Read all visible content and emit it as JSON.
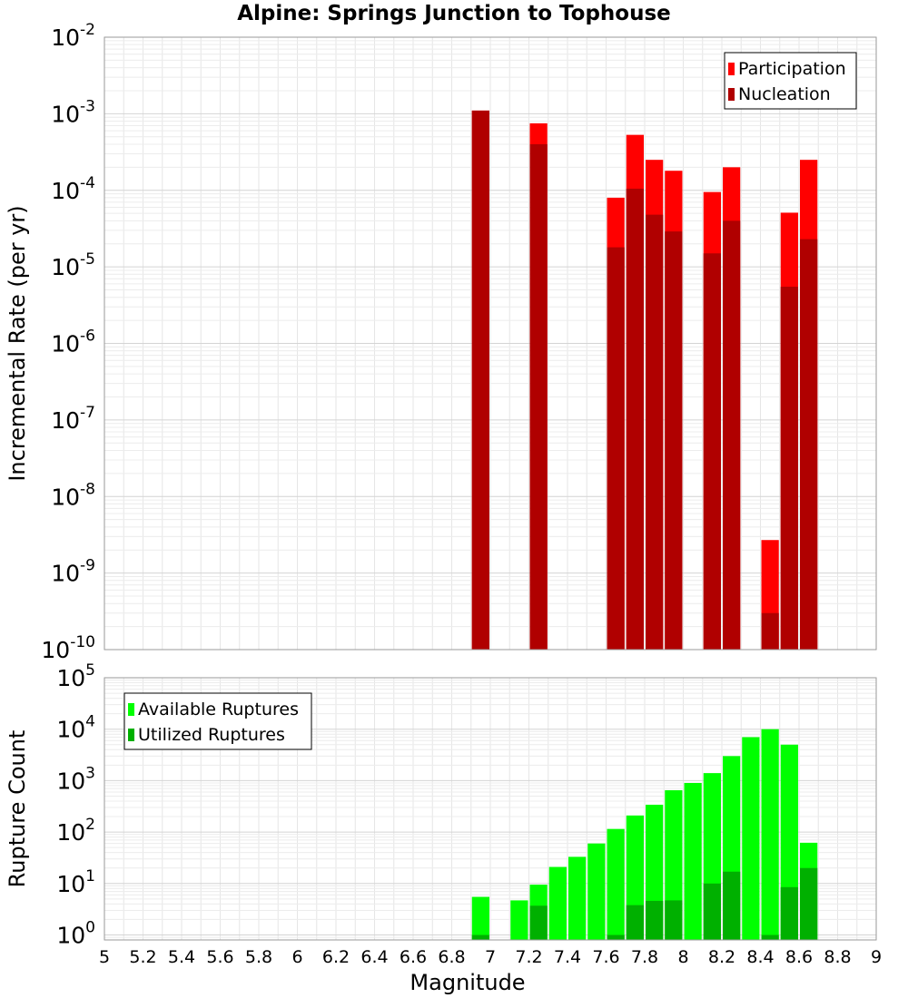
{
  "title": "Alpine: Springs Junction to Tophouse",
  "chart_data": [
    {
      "type": "bar",
      "yscale": "log",
      "xlim": [
        5,
        9
      ],
      "ylim": [
        1e-10,
        0.01
      ],
      "ylabel": "Incremental Rate (per yr)",
      "xlabel": "",
      "grid": true,
      "legend_placement": "top-right",
      "bin_width": 0.1,
      "y_tick_exponents": [
        -10,
        -9,
        -8,
        -7,
        -6,
        -5,
        -4,
        -3,
        -2
      ],
      "series": [
        {
          "name": "Participation",
          "color": "#ff0000",
          "points": [
            [
              6.95,
              0.0011
            ],
            [
              7.25,
              0.00075
            ],
            [
              7.65,
              8e-05
            ],
            [
              7.75,
              0.00053
            ],
            [
              7.85,
              0.00025
            ],
            [
              7.95,
              0.00018
            ],
            [
              8.15,
              9.5e-05
            ],
            [
              8.25,
              0.0002
            ],
            [
              8.45,
              2.7e-09
            ],
            [
              8.55,
              5.1e-05
            ],
            [
              8.65,
              0.00025
            ]
          ]
        },
        {
          "name": "Nucleation",
          "color": "#b00000",
          "points": [
            [
              6.95,
              0.0011
            ],
            [
              7.25,
              0.0004
            ],
            [
              7.65,
              1.8e-05
            ],
            [
              7.75,
              0.000105
            ],
            [
              7.85,
              4.8e-05
            ],
            [
              7.95,
              2.9e-05
            ],
            [
              8.15,
              1.5e-05
            ],
            [
              8.25,
              4e-05
            ],
            [
              8.45,
              3e-10
            ],
            [
              8.55,
              5.5e-06
            ],
            [
              8.65,
              2.3e-05
            ]
          ]
        }
      ]
    },
    {
      "type": "bar",
      "yscale": "log",
      "xlim": [
        5,
        9
      ],
      "ylim": [
        0.8,
        100000
      ],
      "xlabel": "Magnitude",
      "ylabel": "Rupture Count",
      "grid": true,
      "legend_placement": "top-left",
      "bin_width": 0.1,
      "x_ticks": [
        "5",
        "5.2",
        "5.4",
        "5.6",
        "5.8",
        "6",
        "6.2",
        "6.4",
        "6.6",
        "6.8",
        "7",
        "7.2",
        "7.4",
        "7.6",
        "7.8",
        "8",
        "8.2",
        "8.4",
        "8.6",
        "8.8",
        "9"
      ],
      "y_tick_exponents": [
        0,
        1,
        2,
        3,
        4,
        5
      ],
      "series": [
        {
          "name": "Available Ruptures",
          "color": "#00ff00",
          "points": [
            [
              6.95,
              5.5
            ],
            [
              7.15,
              4.7
            ],
            [
              7.25,
              9.5
            ],
            [
              7.35,
              21
            ],
            [
              7.45,
              33
            ],
            [
              7.55,
              60
            ],
            [
              7.65,
              115
            ],
            [
              7.75,
              210
            ],
            [
              7.85,
              340
            ],
            [
              7.95,
              650
            ],
            [
              8.05,
              900
            ],
            [
              8.15,
              1400
            ],
            [
              8.25,
              3000
            ],
            [
              8.35,
              7000
            ],
            [
              8.45,
              10000
            ],
            [
              8.55,
              5000
            ],
            [
              8.65,
              62
            ]
          ]
        },
        {
          "name": "Utilized Ruptures",
          "color": "#00b000",
          "points": [
            [
              6.95,
              1
            ],
            [
              7.25,
              3.7
            ],
            [
              7.65,
              1
            ],
            [
              7.75,
              3.8
            ],
            [
              7.85,
              4.6
            ],
            [
              7.95,
              4.7
            ],
            [
              8.15,
              10
            ],
            [
              8.25,
              17
            ],
            [
              8.45,
              1
            ],
            [
              8.55,
              8.5
            ],
            [
              8.65,
              20
            ]
          ]
        }
      ]
    }
  ]
}
